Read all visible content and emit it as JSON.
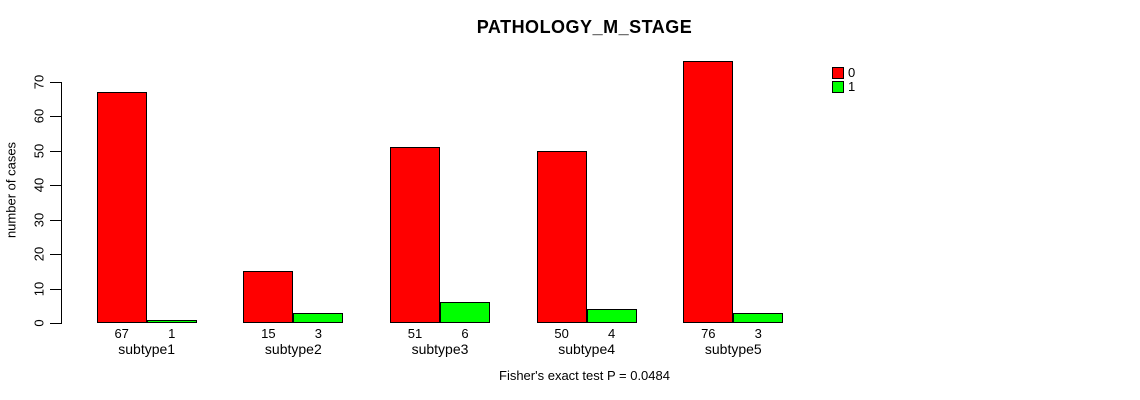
{
  "chart_data": {
    "type": "bar",
    "title": "PATHOLOGY_M_STAGE",
    "xlabel": "",
    "ylabel": "number of cases",
    "footnote": "Fisher's exact test P = 0.0484",
    "categories": [
      "subtype1",
      "subtype2",
      "subtype3",
      "subtype4",
      "subtype5"
    ],
    "series": [
      {
        "name": "0",
        "color": "#FF0000",
        "values": [
          67,
          15,
          51,
          50,
          76
        ]
      },
      {
        "name": "1",
        "color": "#00FF00",
        "values": [
          1,
          3,
          6,
          4,
          3
        ]
      }
    ],
    "bar_value_labels_shown": true,
    "ylim": [
      0,
      70
    ],
    "yticks": [
      0,
      10,
      20,
      30,
      40,
      50,
      60,
      70
    ],
    "grid": false,
    "legend_position": "top-right"
  }
}
